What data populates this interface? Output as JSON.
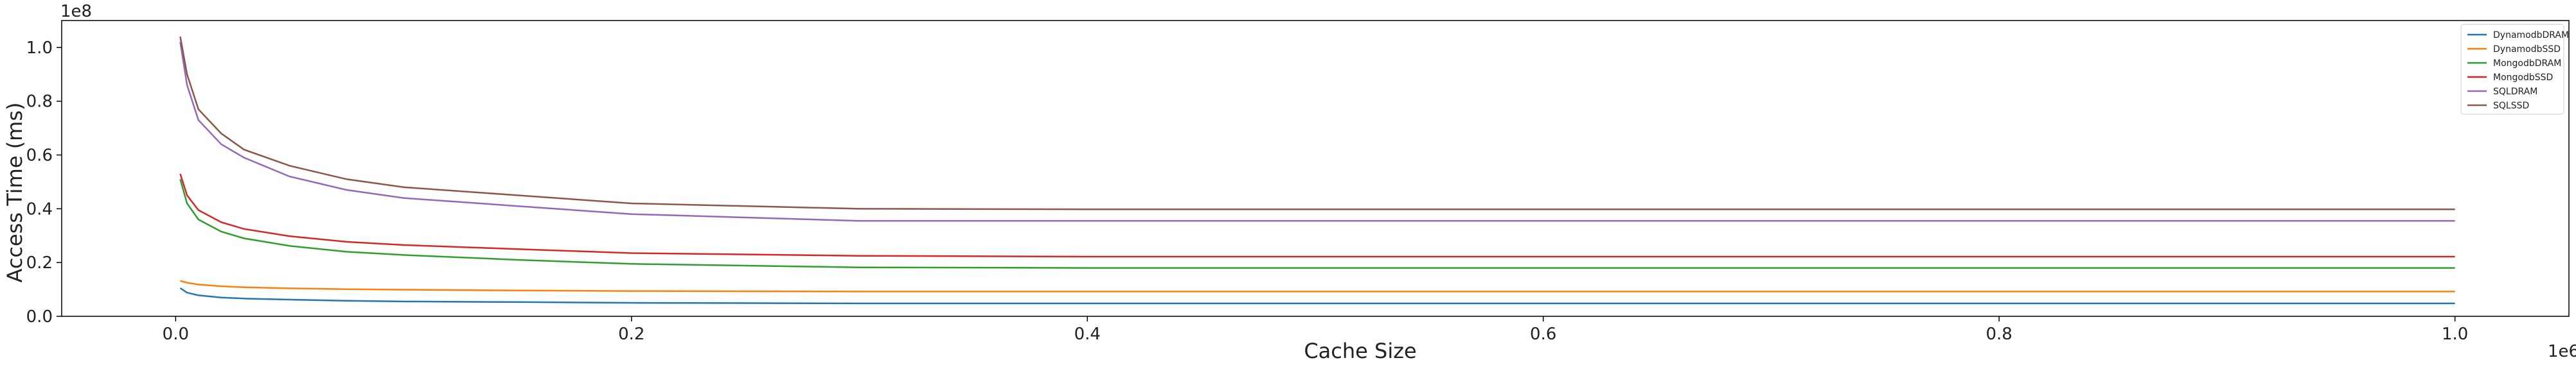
{
  "chart_data": {
    "type": "line",
    "xlabel": "Cache Size",
    "ylabel": "Access Time (ms)",
    "x_offset_label": "1e6",
    "y_offset_label": "1e8",
    "xlim": [
      -0.05,
      1.05
    ],
    "ylim": [
      0.0,
      1.1
    ],
    "x_ticks": [
      0.0,
      0.2,
      0.4,
      0.6,
      0.8,
      1.0
    ],
    "x_tick_labels": [
      "0.0",
      "0.2",
      "0.4",
      "0.6",
      "0.8",
      "1.0"
    ],
    "y_ticks": [
      0.0,
      0.2,
      0.4,
      0.6,
      0.8,
      1.0
    ],
    "y_tick_labels": [
      "0.0",
      "0.2",
      "0.4",
      "0.6",
      "0.8",
      "1.0"
    ],
    "grid": false,
    "legend_position": "top-right",
    "x": [
      0.002,
      0.005,
      0.01,
      0.02,
      0.03,
      0.05,
      0.075,
      0.1,
      0.15,
      0.2,
      0.3,
      0.4,
      0.5,
      0.6,
      0.7,
      0.8,
      0.9,
      1.0
    ],
    "series": [
      {
        "name": "DynamodbDRAM",
        "color": "#1f77b4",
        "values": [
          0.105,
          0.088,
          0.078,
          0.07,
          0.066,
          0.062,
          0.058,
          0.055,
          0.053,
          0.05,
          0.048,
          0.048,
          0.048,
          0.048,
          0.048,
          0.048,
          0.048,
          0.048
        ]
      },
      {
        "name": "DynamodbSSD",
        "color": "#ff7f0e",
        "values": [
          0.132,
          0.125,
          0.118,
          0.112,
          0.108,
          0.104,
          0.101,
          0.099,
          0.096,
          0.094,
          0.092,
          0.092,
          0.092,
          0.092,
          0.092,
          0.092,
          0.092,
          0.092
        ]
      },
      {
        "name": "MongodbDRAM",
        "color": "#2ca02c",
        "values": [
          0.51,
          0.42,
          0.36,
          0.315,
          0.29,
          0.262,
          0.24,
          0.228,
          0.21,
          0.195,
          0.182,
          0.18,
          0.18,
          0.18,
          0.18,
          0.18,
          0.18,
          0.18
        ]
      },
      {
        "name": "MongodbSSD",
        "color": "#d62728",
        "values": [
          0.53,
          0.45,
          0.395,
          0.35,
          0.325,
          0.298,
          0.277,
          0.265,
          0.25,
          0.235,
          0.225,
          0.222,
          0.222,
          0.222,
          0.222,
          0.222,
          0.222,
          0.222
        ]
      },
      {
        "name": "SQLDRAM",
        "color": "#9467bd",
        "values": [
          1.02,
          0.86,
          0.73,
          0.64,
          0.59,
          0.52,
          0.47,
          0.44,
          0.41,
          0.38,
          0.355,
          0.355,
          0.355,
          0.355,
          0.355,
          0.355,
          0.355,
          0.355
        ]
      },
      {
        "name": "SQLSSD",
        "color": "#8c564b",
        "values": [
          1.04,
          0.9,
          0.77,
          0.68,
          0.62,
          0.56,
          0.51,
          0.48,
          0.45,
          0.42,
          0.4,
          0.398,
          0.398,
          0.398,
          0.398,
          0.398,
          0.398,
          0.398
        ]
      }
    ]
  }
}
